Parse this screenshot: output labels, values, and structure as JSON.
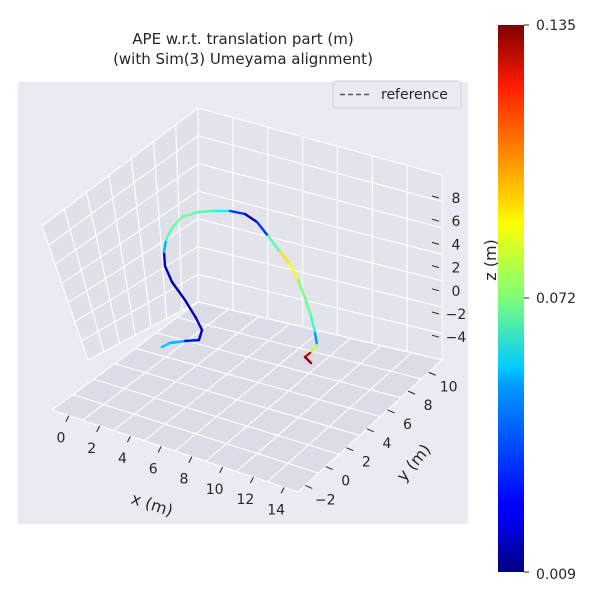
{
  "chart_data": {
    "type": "line",
    "title_line1": "APE w.r.t. translation part (m)",
    "title_line2": "(with Sim(3) Umeyama alignment)",
    "xlabel": "x (m)",
    "ylabel": "y (m)",
    "zlabel": "z (m)",
    "x_ticks": [
      "0",
      "2",
      "4",
      "6",
      "8",
      "10",
      "12",
      "14"
    ],
    "y_ticks": [
      "−2",
      "0",
      "2",
      "4",
      "6",
      "8",
      "10"
    ],
    "z_ticks": [
      "8",
      "6",
      "4",
      "2",
      "0",
      "−2",
      "−4"
    ],
    "legend": {
      "placement": "top-right",
      "entries": [
        {
          "label": "reference",
          "style": "dashed",
          "color": "#555555"
        }
      ]
    },
    "colorbar": {
      "colormap": "jet",
      "min": 0.009,
      "max": 0.135,
      "tick_labels": [
        "0.135",
        "0.072",
        "0.009"
      ]
    },
    "grid": true
  }
}
